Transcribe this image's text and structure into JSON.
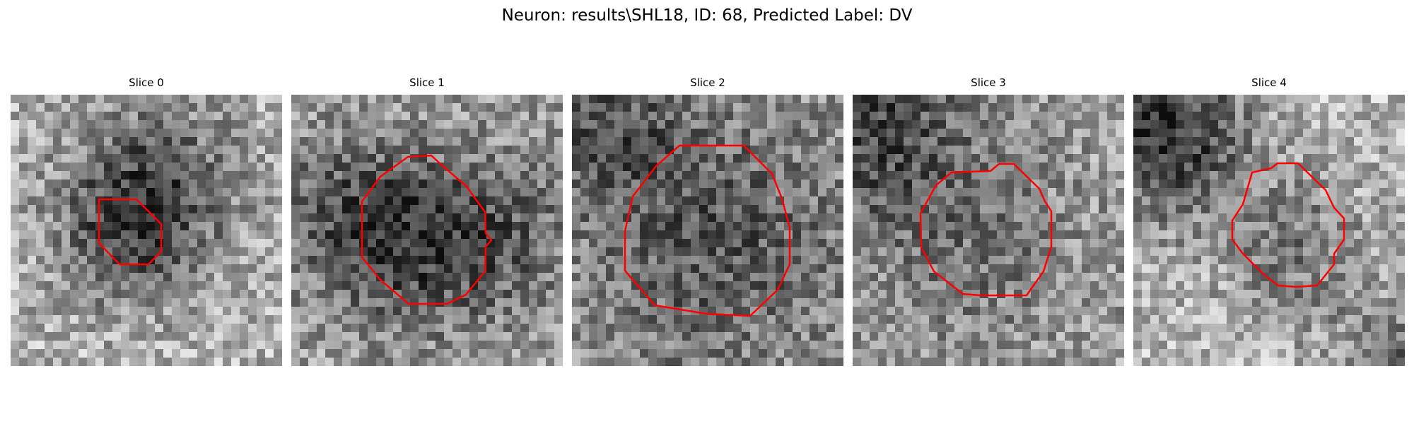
{
  "figure": {
    "title": "Neuron: results\\SHL18, ID: 68, Predicted Label: DV"
  },
  "colors": {
    "contour": "#ff0000",
    "background": "#ffffff"
  },
  "panels": [
    {
      "title": "Slice 0"
    },
    {
      "title": "Slice 1"
    },
    {
      "title": "Slice 2"
    },
    {
      "title": "Slice 3"
    },
    {
      "title": "Slice 4"
    }
  ]
}
